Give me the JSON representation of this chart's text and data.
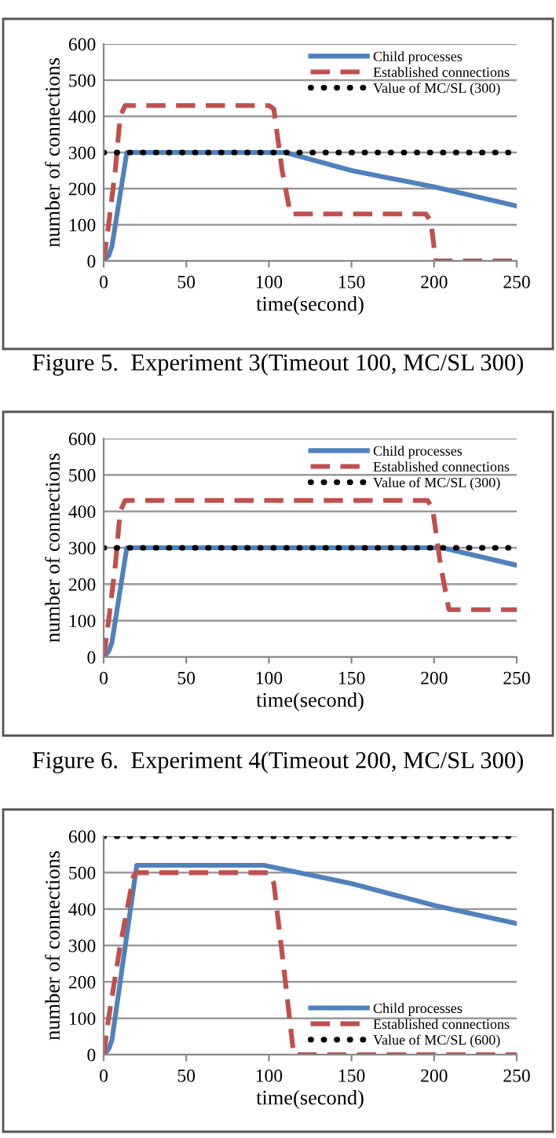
{
  "chart_data": [
    {
      "type": "line",
      "xlabel": "time(second)",
      "ylabel": "number of connections",
      "annotations": [
        "Figure 5.  Experiment 3(Timeout 100, MC/SL 300)"
      ],
      "xlim": [
        0,
        250
      ],
      "ylim": [
        0,
        600
      ],
      "xticks": [
        0,
        50,
        100,
        150,
        200,
        250
      ],
      "yticks": [
        0,
        100,
        200,
        300,
        400,
        500,
        600
      ],
      "grid": "y",
      "legend": "top right",
      "series": [
        {
          "name": "Child processes",
          "color": "#4f81bd",
          "line_style": "solid",
          "x": [
            0,
            3,
            5,
            14,
            110,
            150,
            200,
            250
          ],
          "values": [
            0,
            15,
            40,
            300,
            300,
            250,
            205,
            152
          ]
        },
        {
          "name": "Established connections",
          "color": "#c0504d",
          "line_style": "dashed",
          "x": [
            0,
            3,
            7,
            10,
            13,
            100,
            103,
            108,
            113,
            195,
            198,
            201,
            250
          ],
          "values": [
            0,
            100,
            250,
            400,
            430,
            430,
            420,
            250,
            130,
            130,
            110,
            0,
            0
          ]
        },
        {
          "name": "Value of MC/SL (300)",
          "color": "#000000",
          "line_style": "dotted",
          "x": [
            0,
            245
          ],
          "values": [
            300,
            300
          ]
        }
      ]
    },
    {
      "type": "line",
      "xlabel": "time(second)",
      "ylabel": "number of connections",
      "annotations": [
        "Figure 6.  Experiment 4(Timeout 200, MC/SL 300)"
      ],
      "xlim": [
        0,
        250
      ],
      "ylim": [
        0,
        600
      ],
      "xticks": [
        0,
        50,
        100,
        150,
        200,
        250
      ],
      "yticks": [
        0,
        100,
        200,
        300,
        400,
        500,
        600
      ],
      "grid": "y",
      "legend": "top right",
      "series": [
        {
          "name": "Child processes",
          "color": "#4f81bd",
          "line_style": "solid",
          "x": [
            0,
            3,
            5,
            14,
            205,
            250
          ],
          "values": [
            0,
            15,
            40,
            300,
            300,
            252
          ]
        },
        {
          "name": "Established connections",
          "color": "#c0504d",
          "line_style": "dashed",
          "x": [
            0,
            3,
            7,
            10,
            13,
            196,
            199,
            204,
            209,
            250
          ],
          "values": [
            0,
            100,
            250,
            400,
            430,
            430,
            410,
            250,
            130,
            130
          ]
        },
        {
          "name": "Value of MC/SL (300)",
          "color": "#000000",
          "line_style": "dotted",
          "x": [
            0,
            245
          ],
          "values": [
            300,
            300
          ]
        }
      ]
    },
    {
      "type": "line",
      "xlabel": "time(second)",
      "ylabel": "number of connections",
      "xlim": [
        0,
        250
      ],
      "ylim": [
        0,
        600
      ],
      "xticks": [
        0,
        50,
        100,
        150,
        200,
        250
      ],
      "yticks": [
        0,
        100,
        200,
        300,
        400,
        500,
        600
      ],
      "grid": "y",
      "legend": "bottom right",
      "series": [
        {
          "name": "Child processes",
          "color": "#4f81bd",
          "line_style": "solid",
          "x": [
            0,
            3,
            5,
            20,
            97,
            150,
            200,
            250
          ],
          "values": [
            0,
            15,
            40,
            520,
            520,
            470,
            410,
            360
          ]
        },
        {
          "name": "Established connections",
          "color": "#c0504d",
          "line_style": "dashed",
          "x": [
            0,
            3,
            10,
            18,
            20,
            100,
            103,
            110,
            115,
            250
          ],
          "values": [
            0,
            100,
            300,
            490,
            500,
            500,
            470,
            200,
            0,
            0
          ]
        },
        {
          "name": "Value of MC/SL (600)",
          "color": "#000000",
          "line_style": "dotted",
          "x": [
            0,
            245
          ],
          "values": [
            600,
            600
          ]
        }
      ]
    }
  ]
}
